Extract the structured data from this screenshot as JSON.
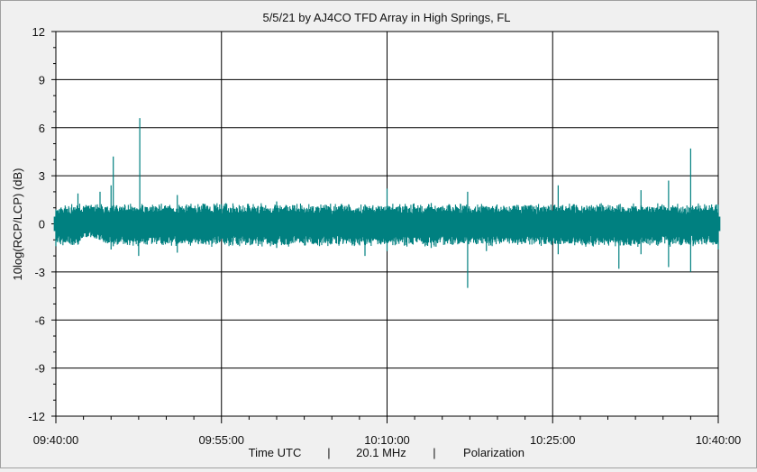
{
  "chart_data": {
    "type": "line",
    "title": "5/5/21  by  AJ4CO TFD Array  in  High Springs, FL",
    "ylabel": "10log(RCP/LCP) (dB)",
    "ylim": [
      -12,
      12
    ],
    "yticks": [
      "12",
      "9",
      "6",
      "3",
      "0",
      "-3",
      "-6",
      "-9",
      "-12"
    ],
    "xlim": [
      "09:40:00",
      "10:40:00"
    ],
    "xticks": [
      "09:40:00",
      "09:55:00",
      "10:10:00",
      "10:25:00",
      "10:40:00"
    ],
    "footer": [
      "Time UTC",
      "|",
      "20.1 MHz",
      "|",
      "Polarization"
    ],
    "grid": true,
    "legend": "none",
    "series_color": "#008080",
    "series": [
      {
        "x_minutes_after_0940": [
          0,
          2,
          2.5,
          4,
          5,
          5.2,
          7.5,
          7.6,
          11,
          20,
          28,
          30,
          34,
          37.3,
          39,
          45.5,
          51,
          53,
          55.5,
          57.5,
          60
        ],
        "upper_envelope_db": [
          0.9,
          1.9,
          1.1,
          2.0,
          2.4,
          4.2,
          0.9,
          6.6,
          1.8,
          1.4,
          1.2,
          2.2,
          1.3,
          2.0,
          1.1,
          2.4,
          1.2,
          2.1,
          2.7,
          4.7,
          1.2
        ],
        "lower_envelope_db": [
          -1.4,
          -1.3,
          -0.8,
          -1.0,
          -1.6,
          -1.4,
          -2.0,
          -1.2,
          -1.8,
          -1.5,
          -2.0,
          -1.7,
          -1.5,
          -4.0,
          -1.7,
          -1.9,
          -2.8,
          -1.9,
          -2.7,
          -3.0,
          -1.6
        ]
      }
    ]
  }
}
